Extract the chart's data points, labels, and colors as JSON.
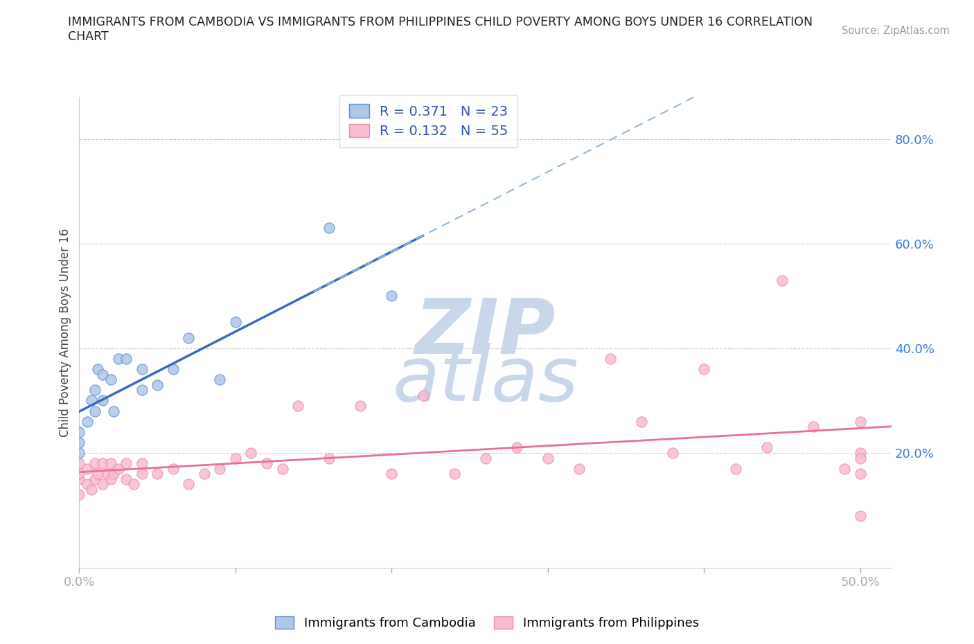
{
  "title": "IMMIGRANTS FROM CAMBODIA VS IMMIGRANTS FROM PHILIPPINES CHILD POVERTY AMONG BOYS UNDER 16 CORRELATION\nCHART",
  "source_text": "Source: ZipAtlas.com",
  "ylabel": "Child Poverty Among Boys Under 16",
  "xlim": [
    0.0,
    0.52
  ],
  "ylim": [
    -0.02,
    0.88
  ],
  "xticks": [
    0.0,
    0.1,
    0.2,
    0.3,
    0.4,
    0.5
  ],
  "yticks": [
    0.0,
    0.2,
    0.4,
    0.6,
    0.8
  ],
  "cambodia_R": 0.371,
  "cambodia_N": 23,
  "philippines_R": 0.132,
  "philippines_N": 55,
  "cambodia_color": "#aec6e8",
  "cambodia_edge_color": "#5b8fcf",
  "philippines_color": "#f8bbd0",
  "philippines_edge_color": "#e88fa8",
  "trendline_cambodia_color": "#3a6bbf",
  "trendline_philippines_color": "#e87090",
  "trendline_dashed_color": "#90b8d8",
  "watermark_color": "#c8d8ea",
  "cambodia_scatter_x": [
    0.0,
    0.0,
    0.0,
    0.005,
    0.008,
    0.01,
    0.01,
    0.012,
    0.015,
    0.015,
    0.02,
    0.022,
    0.025,
    0.03,
    0.04,
    0.04,
    0.05,
    0.06,
    0.07,
    0.09,
    0.1,
    0.16,
    0.2
  ],
  "cambodia_scatter_y": [
    0.2,
    0.22,
    0.24,
    0.26,
    0.3,
    0.28,
    0.32,
    0.36,
    0.3,
    0.35,
    0.34,
    0.28,
    0.38,
    0.38,
    0.32,
    0.36,
    0.33,
    0.36,
    0.42,
    0.34,
    0.45,
    0.63,
    0.5
  ],
  "philippines_scatter_x": [
    0.0,
    0.0,
    0.0,
    0.0,
    0.005,
    0.005,
    0.008,
    0.01,
    0.01,
    0.012,
    0.015,
    0.015,
    0.018,
    0.02,
    0.02,
    0.022,
    0.025,
    0.03,
    0.03,
    0.035,
    0.04,
    0.04,
    0.05,
    0.06,
    0.07,
    0.08,
    0.09,
    0.1,
    0.11,
    0.12,
    0.13,
    0.14,
    0.16,
    0.18,
    0.2,
    0.22,
    0.24,
    0.26,
    0.28,
    0.3,
    0.32,
    0.34,
    0.36,
    0.38,
    0.4,
    0.42,
    0.44,
    0.45,
    0.47,
    0.49,
    0.5,
    0.5,
    0.5,
    0.5,
    0.5
  ],
  "philippines_scatter_y": [
    0.18,
    0.15,
    0.12,
    0.16,
    0.14,
    0.17,
    0.13,
    0.18,
    0.15,
    0.16,
    0.14,
    0.18,
    0.16,
    0.15,
    0.18,
    0.16,
    0.17,
    0.15,
    0.18,
    0.14,
    0.16,
    0.18,
    0.16,
    0.17,
    0.14,
    0.16,
    0.17,
    0.19,
    0.2,
    0.18,
    0.17,
    0.29,
    0.19,
    0.29,
    0.16,
    0.31,
    0.16,
    0.19,
    0.21,
    0.19,
    0.17,
    0.38,
    0.26,
    0.2,
    0.36,
    0.17,
    0.21,
    0.53,
    0.25,
    0.17,
    0.2,
    0.16,
    0.26,
    0.19,
    0.08
  ]
}
